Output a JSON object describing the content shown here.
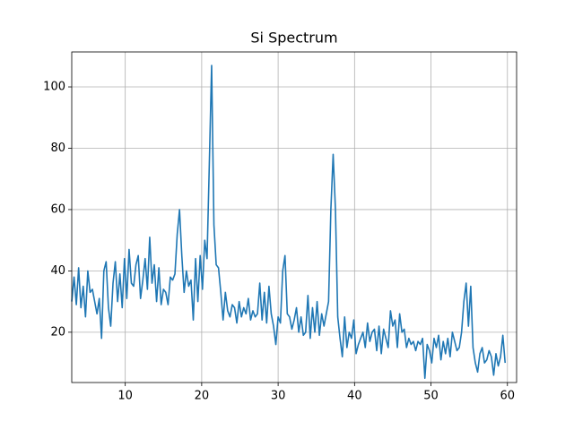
{
  "chart_data": {
    "type": "line",
    "title": "Si Spectrum",
    "color": "#1f77b4",
    "grid": true,
    "xlim": [
      3,
      61.2
    ],
    "ylim": [
      3.6,
      111.4
    ],
    "xticks": [
      10,
      20,
      30,
      40,
      50,
      60
    ],
    "yticks": [
      20,
      40,
      60,
      80,
      100
    ],
    "x": [
      3,
      3.3,
      3.6,
      3.9,
      4.2,
      4.5,
      4.8,
      5.1,
      5.4,
      5.7,
      6,
      6.3,
      6.6,
      6.9,
      7.2,
      7.5,
      7.8,
      8.1,
      8.4,
      8.7,
      9,
      9.3,
      9.6,
      9.9,
      10.2,
      10.5,
      10.8,
      11.1,
      11.4,
      11.7,
      12,
      12.3,
      12.6,
      12.9,
      13.2,
      13.5,
      13.8,
      14.1,
      14.4,
      14.7,
      15,
      15.3,
      15.6,
      15.9,
      16.2,
      16.5,
      16.8,
      17.1,
      17.4,
      17.7,
      18,
      18.3,
      18.6,
      18.9,
      19.2,
      19.5,
      19.8,
      20.1,
      20.4,
      20.7,
      21,
      21.3,
      21.6,
      21.9,
      22.2,
      22.5,
      22.8,
      23.1,
      23.4,
      23.7,
      24,
      24.3,
      24.6,
      24.9,
      25.2,
      25.5,
      25.8,
      26.1,
      26.4,
      26.7,
      27,
      27.3,
      27.6,
      27.9,
      28.2,
      28.5,
      28.8,
      29.1,
      29.4,
      29.7,
      30,
      30.3,
      30.6,
      30.9,
      31.2,
      31.5,
      31.8,
      32.1,
      32.4,
      32.7,
      33,
      33.3,
      33.6,
      33.9,
      34.2,
      34.5,
      34.8,
      35.1,
      35.4,
      35.7,
      36,
      36.3,
      36.6,
      36.9,
      37.2,
      37.5,
      37.8,
      38.1,
      38.4,
      38.7,
      39,
      39.3,
      39.6,
      39.9,
      40.2,
      40.5,
      40.8,
      41.1,
      41.4,
      41.7,
      42,
      42.3,
      42.6,
      42.9,
      43.2,
      43.5,
      43.8,
      44.1,
      44.4,
      44.7,
      45,
      45.3,
      45.6,
      45.9,
      46.2,
      46.5,
      46.8,
      47.1,
      47.4,
      47.7,
      48,
      48.3,
      48.6,
      48.9,
      49.2,
      49.5,
      49.8,
      50.1,
      50.4,
      50.7,
      51,
      51.3,
      51.6,
      51.9,
      52.2,
      52.5,
      52.8,
      53.1,
      53.4,
      53.7,
      54,
      54.3,
      54.6,
      54.9,
      55.2,
      55.5,
      55.8,
      56.1,
      56.4,
      56.7,
      57,
      57.3,
      57.6,
      57.9,
      58.2,
      58.5,
      58.8,
      59.1,
      59.4,
      59.7
    ],
    "values": [
      30,
      38,
      29,
      41,
      28,
      35,
      25,
      40,
      33,
      34,
      30,
      26,
      31,
      18,
      40,
      43,
      28,
      22,
      36,
      43,
      30,
      39,
      28,
      44,
      31,
      47,
      36,
      35,
      42,
      45,
      31,
      37,
      44,
      34,
      51,
      36,
      42,
      30,
      41,
      29,
      34,
      33,
      29,
      38,
      37,
      39,
      52,
      60,
      45,
      33,
      40,
      35,
      37,
      24,
      44,
      30,
      45,
      34,
      50,
      44,
      75,
      107,
      55,
      42,
      41,
      33,
      24,
      33,
      27,
      25,
      29,
      28,
      23,
      30,
      25,
      28,
      26,
      31,
      24,
      27,
      25,
      26,
      36,
      24,
      33,
      23,
      35,
      26,
      22,
      16,
      25,
      23,
      40,
      45,
      26,
      25,
      21,
      24,
      28,
      20,
      25,
      19,
      20,
      32,
      18,
      28,
      20,
      30,
      19,
      26,
      22,
      26,
      30,
      60,
      78,
      60,
      25,
      18,
      12,
      25,
      15,
      20,
      18,
      24,
      13,
      16,
      18,
      20,
      15,
      23,
      17,
      20,
      21,
      14,
      22,
      13,
      21,
      18,
      15,
      27,
      22,
      24,
      15,
      26,
      20,
      21,
      15,
      18,
      16,
      17,
      14,
      17,
      16,
      18,
      5,
      16,
      14,
      10,
      18,
      15,
      19,
      11,
      17,
      13,
      18,
      12,
      20,
      17,
      14,
      15,
      20,
      30,
      36,
      22,
      35,
      15,
      10,
      7,
      13,
      15,
      10,
      11,
      14,
      12,
      6,
      13,
      9,
      12,
      19,
      10
    ]
  }
}
